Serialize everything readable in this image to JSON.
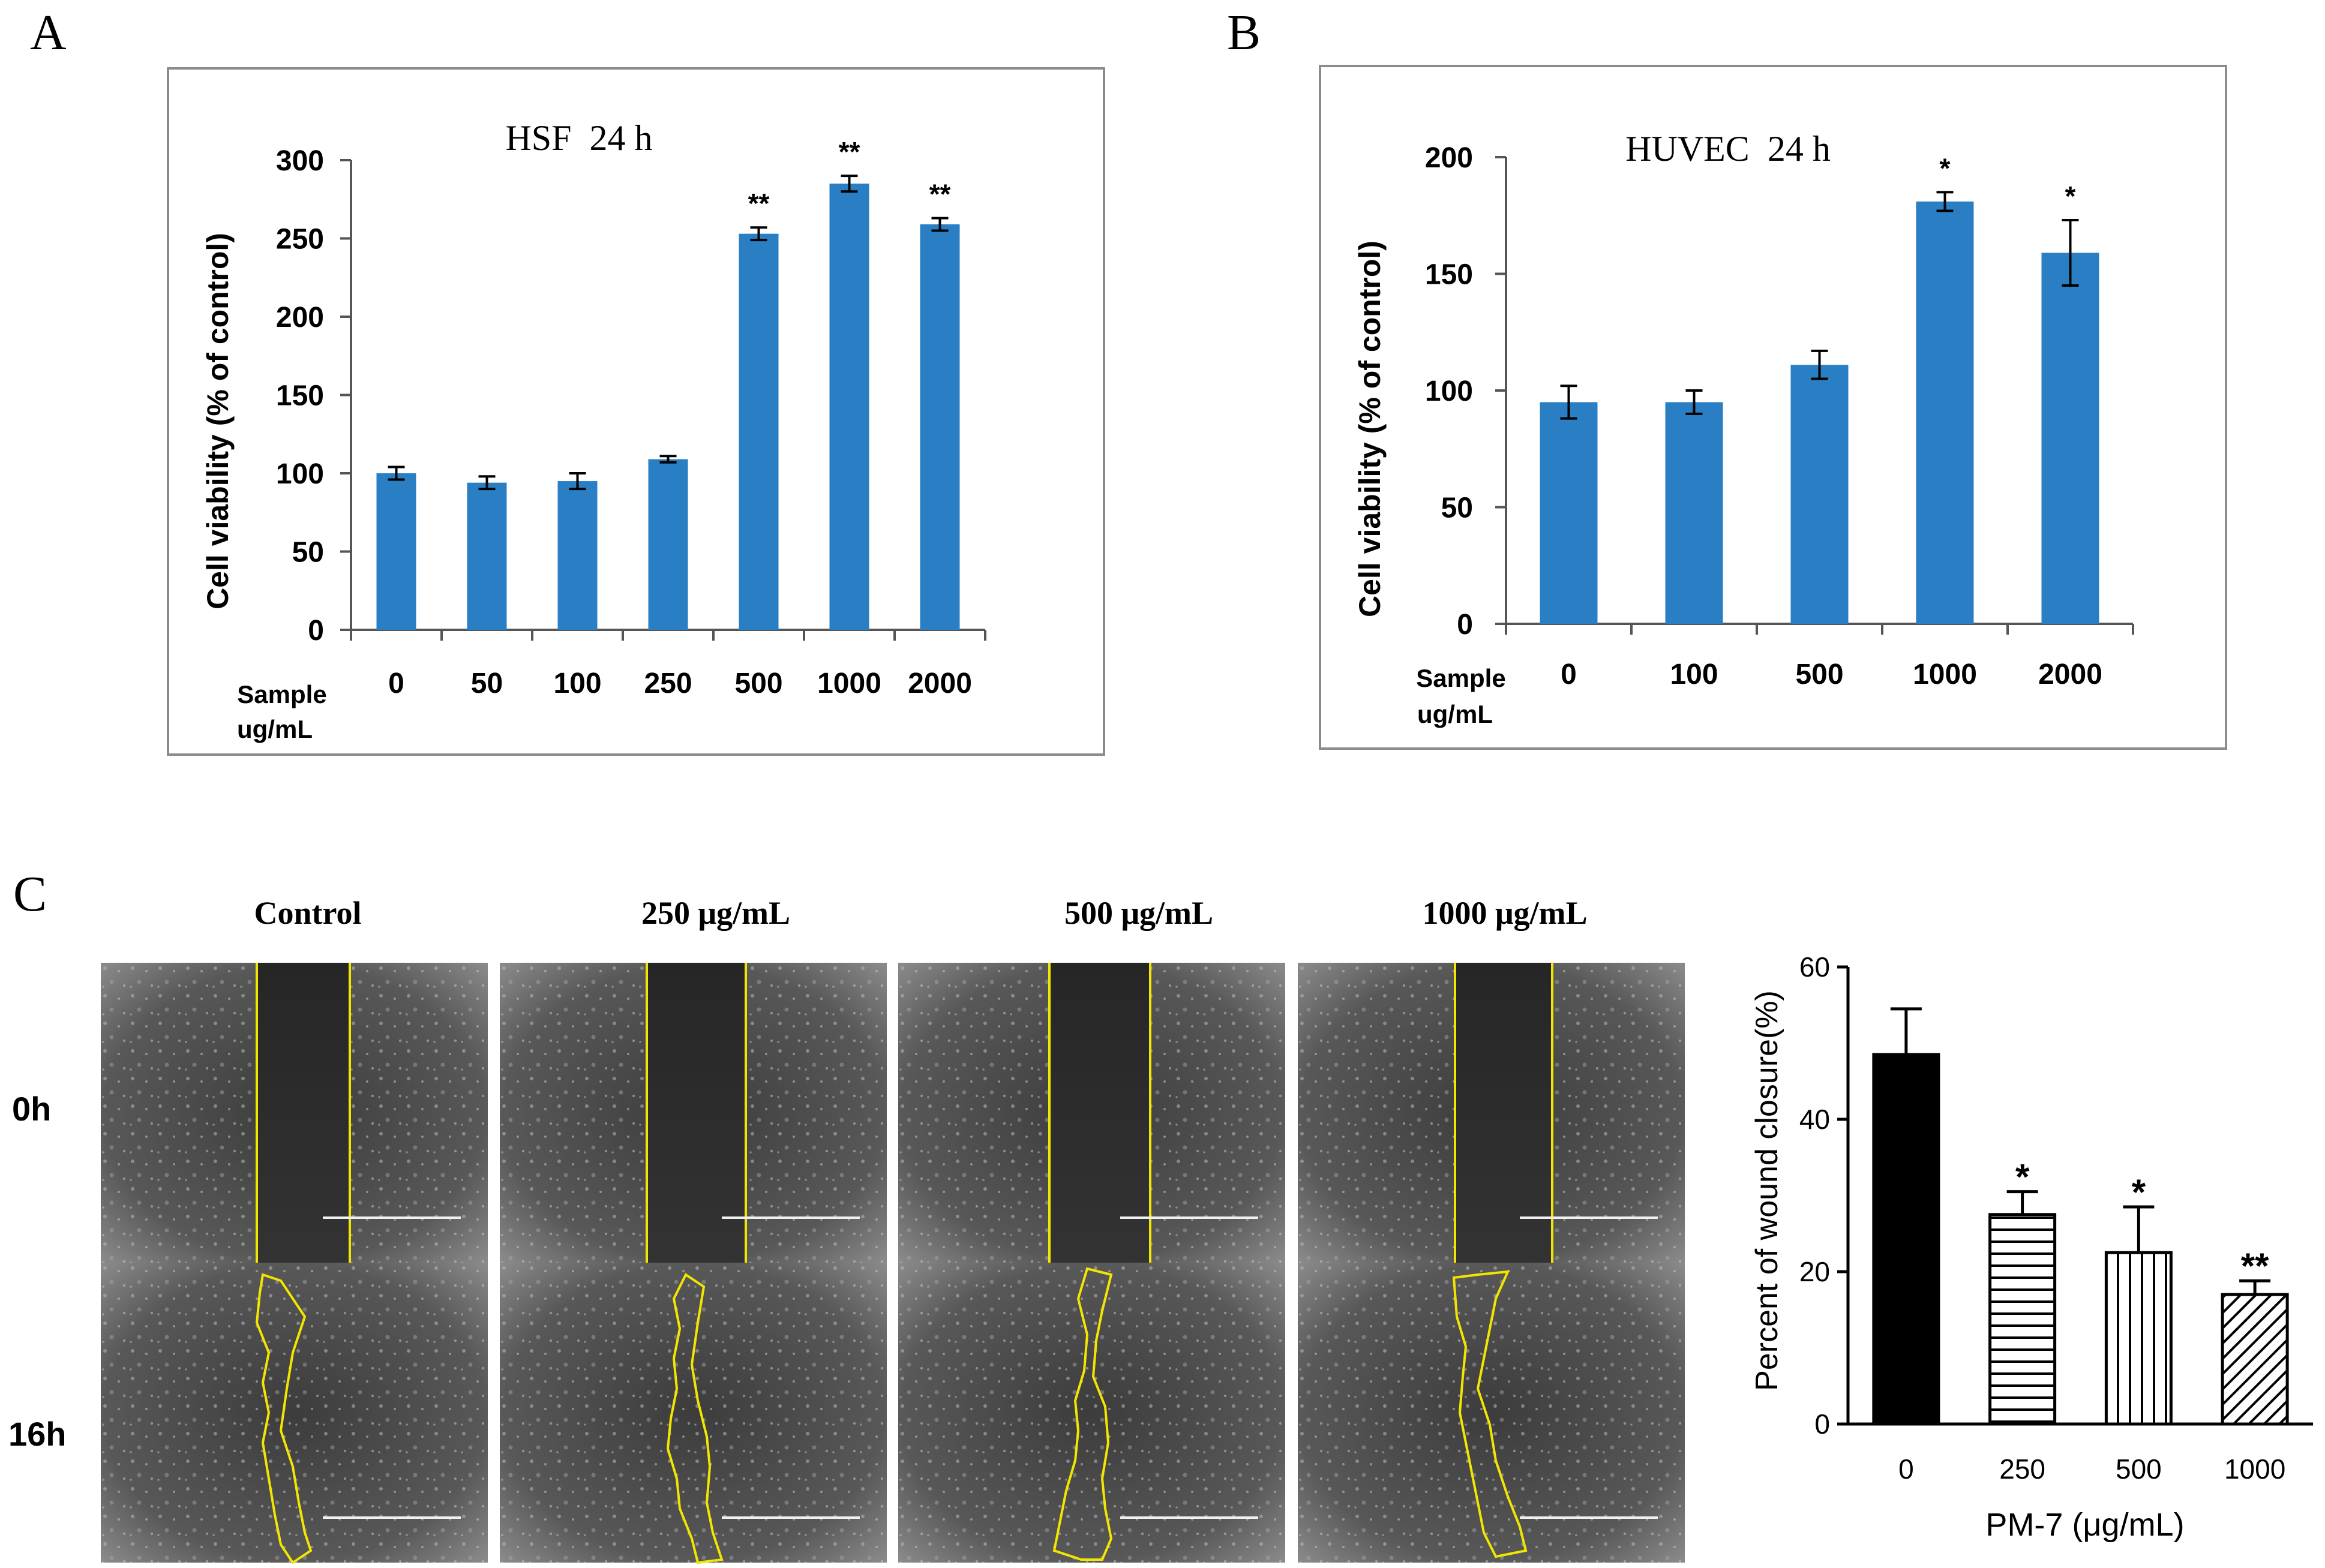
{
  "figure": {
    "panels": {
      "A": {
        "letter": "A"
      },
      "B": {
        "letter": "B"
      },
      "C": {
        "letter": "C"
      }
    },
    "micrographs": {
      "columns": [
        "Control",
        "250 μg/mL",
        "500 μg/mL",
        "1000 μg/mL"
      ],
      "rows": [
        "0h",
        "16h"
      ],
      "outline_color": "#f2e600"
    }
  },
  "chart_data": [
    {
      "id": "A",
      "type": "bar",
      "title": "HSF  24 h",
      "ylabel": "Cell viability (% of control)",
      "xlabel_lines": [
        "Sample",
        "ug/mL"
      ],
      "categories": [
        "0",
        "50",
        "100",
        "250",
        "500",
        "1000",
        "2000"
      ],
      "values": [
        100,
        94,
        95,
        109,
        253,
        285,
        259
      ],
      "errors": [
        4,
        4,
        5,
        2,
        4,
        5,
        4
      ],
      "annotations": [
        "",
        "",
        "",
        "",
        "**",
        "**",
        "**"
      ],
      "ylim": [
        0,
        300
      ],
      "yticks": [
        0,
        50,
        100,
        150,
        200,
        250,
        300
      ],
      "bar_color": "#2a7fc4",
      "grid": false
    },
    {
      "id": "B",
      "type": "bar",
      "title": "HUVEC  24 h",
      "ylabel": "Cell viability (% of control)",
      "xlabel_lines": [
        "Sample",
        "ug/mL"
      ],
      "categories": [
        "0",
        "100",
        "500",
        "1000",
        "2000"
      ],
      "values": [
        95,
        95,
        111,
        181,
        159
      ],
      "errors": [
        7,
        5,
        6,
        4,
        14
      ],
      "annotations": [
        "",
        "",
        "",
        "*",
        "*"
      ],
      "ylim": [
        0,
        200
      ],
      "yticks": [
        0,
        50,
        100,
        150,
        200
      ],
      "bar_color": "#2a7fc4",
      "grid": false
    },
    {
      "id": "C",
      "type": "bar",
      "ylabel": "Percent of wound closure(%)",
      "xlabel": "PM-7 (μg/mL)",
      "categories": [
        "0",
        "250",
        "500",
        "1000"
      ],
      "values": [
        48.5,
        27.5,
        22.5,
        17
      ],
      "errors": [
        6,
        3,
        6,
        1.8
      ],
      "annotations": [
        "",
        "*",
        "*",
        "**"
      ],
      "patterns": [
        "solid",
        "horizontal",
        "vertical",
        "diagonal"
      ],
      "ylim": [
        0,
        60
      ],
      "yticks": [
        0,
        20,
        40,
        60
      ],
      "bar_color": "#000000",
      "grid": false
    }
  ]
}
